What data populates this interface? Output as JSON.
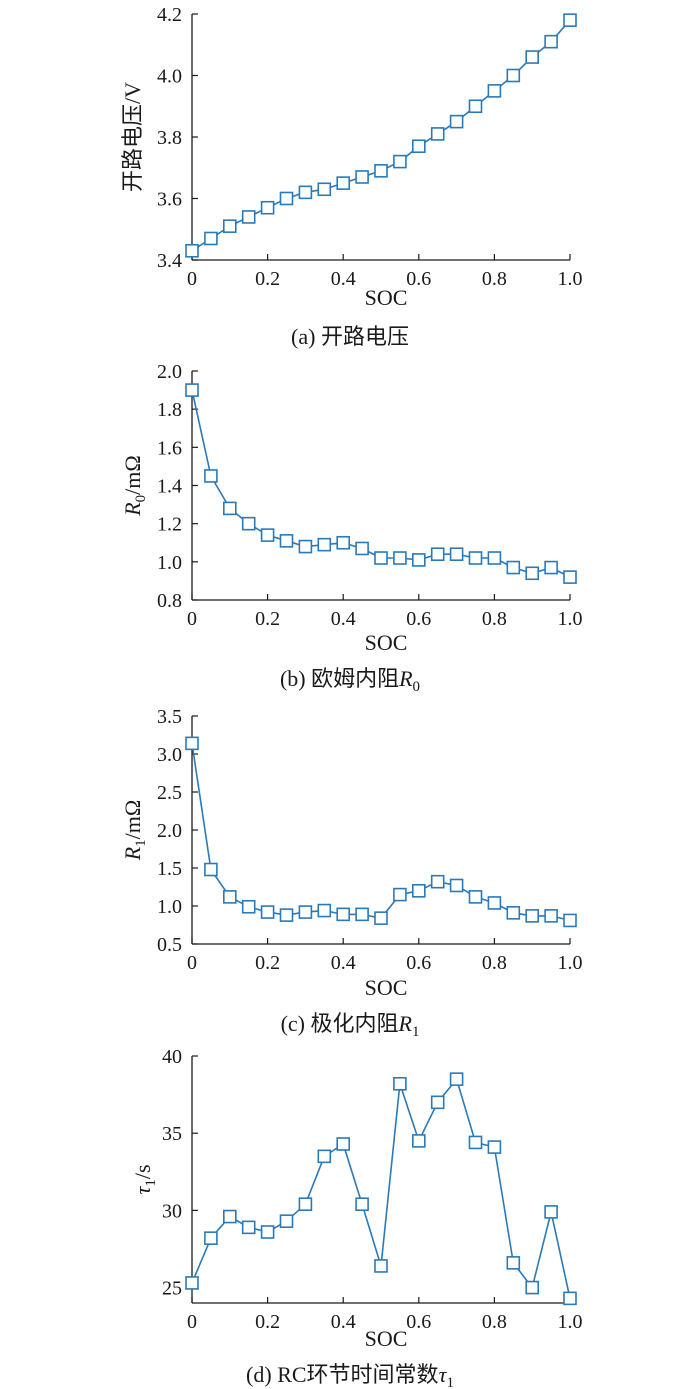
{
  "colors": {
    "series": "#2a7ab9",
    "axis": "#1a1a1a"
  },
  "chart_data": [
    {
      "type": "line",
      "caption": "(a)  开路电压",
      "xlabel": "SOC",
      "ylabel": "开路电压/V",
      "xlim": [
        0,
        1.0
      ],
      "ylim": [
        3.4,
        4.2
      ],
      "xticks": [
        "0",
        "0.2",
        "0.4",
        "0.6",
        "0.8",
        "1.0"
      ],
      "yticks": [
        "3.4",
        "3.6",
        "3.8",
        "4.0",
        "4.2"
      ],
      "marker": "square",
      "x": [
        0,
        0.05,
        0.1,
        0.15,
        0.2,
        0.25,
        0.3,
        0.35,
        0.4,
        0.45,
        0.5,
        0.55,
        0.6,
        0.65,
        0.7,
        0.75,
        0.8,
        0.85,
        0.9,
        0.95,
        1.0
      ],
      "y": [
        3.43,
        3.47,
        3.51,
        3.54,
        3.57,
        3.6,
        3.62,
        3.63,
        3.65,
        3.67,
        3.69,
        3.72,
        3.77,
        3.81,
        3.85,
        3.9,
        3.95,
        4.0,
        4.06,
        4.11,
        4.18
      ]
    },
    {
      "type": "line",
      "caption": "(b)  欧姆内阻",
      "caption_symbol": "R",
      "caption_sub": "0",
      "xlabel": "SOC",
      "ylabel_symbol": "R",
      "ylabel_sub": "0",
      "ylabel_unit": "/mΩ",
      "xlim": [
        0,
        1.0
      ],
      "ylim": [
        0.8,
        2.0
      ],
      "xticks": [
        "0",
        "0.2",
        "0.4",
        "0.6",
        "0.8",
        "1.0"
      ],
      "yticks": [
        "0.8",
        "1.0",
        "1.2",
        "1.4",
        "1.6",
        "1.8",
        "2.0"
      ],
      "marker": "square",
      "x": [
        0,
        0.05,
        0.1,
        0.15,
        0.2,
        0.25,
        0.3,
        0.35,
        0.4,
        0.45,
        0.5,
        0.55,
        0.6,
        0.65,
        0.7,
        0.75,
        0.8,
        0.85,
        0.9,
        0.95,
        1.0
      ],
      "y": [
        1.9,
        1.45,
        1.28,
        1.2,
        1.14,
        1.11,
        1.08,
        1.09,
        1.1,
        1.07,
        1.02,
        1.02,
        1.01,
        1.04,
        1.04,
        1.02,
        1.02,
        0.97,
        0.94,
        0.97,
        0.92
      ]
    },
    {
      "type": "line",
      "caption": "(c)  极化内阻",
      "caption_symbol": "R",
      "caption_sub": "1",
      "xlabel": "SOC",
      "ylabel_symbol": "R",
      "ylabel_sub": "1",
      "ylabel_unit": "/mΩ",
      "xlim": [
        0,
        1.0
      ],
      "ylim": [
        0.5,
        3.5
      ],
      "xticks": [
        "0",
        "0.2",
        "0.4",
        "0.6",
        "0.8",
        "1.0"
      ],
      "yticks": [
        "0.5",
        "1.0",
        "1.5",
        "2.0",
        "2.5",
        "3.0",
        "3.5"
      ],
      "marker": "square",
      "x": [
        0,
        0.05,
        0.1,
        0.15,
        0.2,
        0.25,
        0.3,
        0.35,
        0.4,
        0.45,
        0.5,
        0.55,
        0.6,
        0.65,
        0.7,
        0.75,
        0.8,
        0.85,
        0.9,
        0.95,
        1.0
      ],
      "y": [
        3.14,
        1.48,
        1.12,
        0.99,
        0.92,
        0.88,
        0.92,
        0.94,
        0.89,
        0.89,
        0.84,
        1.15,
        1.2,
        1.32,
        1.27,
        1.12,
        1.04,
        0.91,
        0.87,
        0.87,
        0.81
      ]
    },
    {
      "type": "line",
      "caption": "(d)  RC环节时间常数",
      "caption_symbol": "τ",
      "caption_sub": "1",
      "xlabel": "SOC",
      "ylabel_symbol": "τ",
      "ylabel_sub": "1",
      "ylabel_unit": "/s",
      "xlim": [
        0,
        1.0
      ],
      "ylim": [
        24,
        40
      ],
      "xticks": [
        "0",
        "0.2",
        "0.4",
        "0.6",
        "0.8",
        "1.0"
      ],
      "yticks": [
        "25",
        "30",
        "35",
        "40"
      ],
      "ytick_values": [
        25,
        30,
        35,
        40
      ],
      "marker": "square",
      "x": [
        0,
        0.05,
        0.1,
        0.15,
        0.2,
        0.25,
        0.3,
        0.35,
        0.4,
        0.45,
        0.5,
        0.55,
        0.6,
        0.65,
        0.7,
        0.75,
        0.8,
        0.85,
        0.9,
        0.95,
        1.0
      ],
      "y": [
        25.3,
        28.2,
        29.6,
        28.9,
        28.6,
        29.3,
        30.4,
        33.5,
        34.3,
        30.4,
        26.4,
        38.2,
        34.5,
        37.0,
        38.5,
        34.4,
        34.1,
        26.6,
        25.0,
        29.9,
        24.3
      ]
    }
  ]
}
